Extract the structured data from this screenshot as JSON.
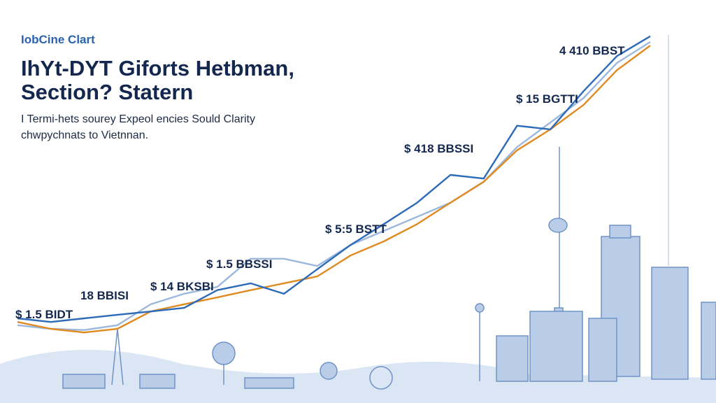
{
  "chart_data": {
    "type": "line",
    "kicker": "IobCine Clart",
    "title": [
      "IhYt-DYT Giforts Hetbman,",
      "Section? Statern"
    ],
    "subtitle": [
      "I Termi-hets sourey Expeol encies Sould Clarity",
      "chwpychnats to Vietnnan."
    ],
    "categories": [
      null,
      null,
      null,
      null,
      null,
      null,
      null,
      null,
      null,
      null,
      null,
      null,
      null,
      null,
      null,
      null,
      null,
      null,
      null,
      null
    ],
    "ylim": [
      0,
      100
    ],
    "series": [
      {
        "color": "#2d6bb8",
        "values": [
          21.0,
          20.1,
          21.0,
          21.9,
          22.7,
          23.6,
          28.0,
          29.7,
          27.1,
          33.2,
          39.2,
          44.4,
          49.7,
          56.6,
          55.7,
          68.8,
          67.9,
          77.4,
          86.1,
          91.0
        ]
      },
      {
        "color": "#e08a22",
        "values": [
          20.1,
          18.4,
          17.5,
          18.4,
          22.7,
          24.5,
          26.2,
          28.0,
          29.7,
          31.4,
          36.6,
          40.1,
          44.4,
          49.7,
          54.9,
          62.7,
          67.9,
          74.0,
          82.6,
          88.7
        ]
      },
      {
        "color": "#9cb8dc",
        "values": [
          19.3,
          18.4,
          18.1,
          19.3,
          24.5,
          27.1,
          28.8,
          35.8,
          35.8,
          34.0,
          39.2,
          42.7,
          46.2,
          49.7,
          54.9,
          63.5,
          69.6,
          75.7,
          84.4,
          89.6
        ]
      }
    ],
    "annotations": [
      "$ 1.5 BIDT",
      "18 BBISI",
      "$ 14 BKSBI",
      "$ 1.5 BBSSI",
      "$ 5:5 BSTT",
      "$ 418 BBSSI",
      "$ 15 BGTTI",
      "4 410 BBST"
    ]
  }
}
